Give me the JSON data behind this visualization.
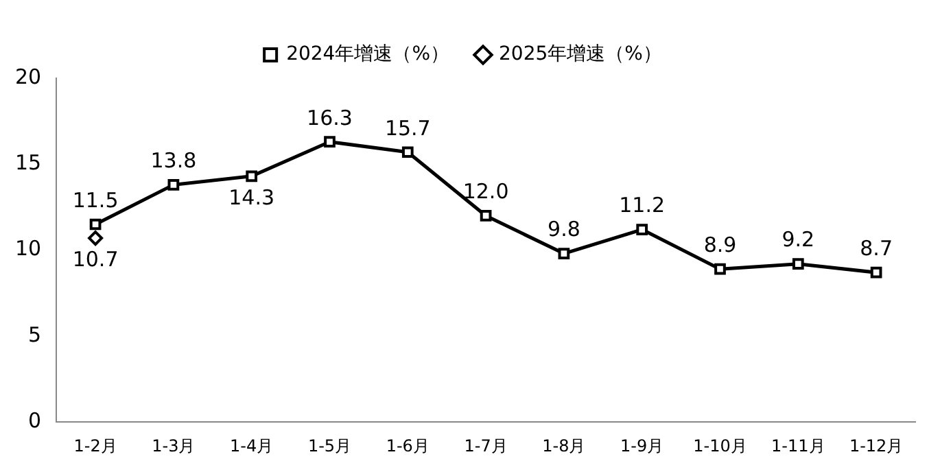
{
  "chart_data": {
    "type": "line",
    "categories": [
      "1-2月",
      "1-3月",
      "1-4月",
      "1-5月",
      "1-6月",
      "1-7月",
      "1-8月",
      "1-9月",
      "1-10月",
      "1-11月",
      "1-12月"
    ],
    "series": [
      {
        "name": "2024年增速（%）",
        "color": "#000000",
        "marker": "square",
        "values": [
          11.5,
          13.8,
          14.3,
          16.3,
          15.7,
          12.0,
          9.8,
          11.2,
          8.9,
          9.2,
          8.7
        ],
        "value_labels": [
          "11.5",
          "13.8",
          "14.3",
          "16.3",
          "15.7",
          "12.0",
          "9.8",
          "11.2",
          "8.9",
          "9.2",
          "8.7"
        ]
      },
      {
        "name": "2025年增速（%）",
        "color": "#000000",
        "marker": "diamond",
        "values": [
          10.7,
          null,
          null,
          null,
          null,
          null,
          null,
          null,
          null,
          null,
          null
        ],
        "value_labels": [
          "10.7",
          null,
          null,
          null,
          null,
          null,
          null,
          null,
          null,
          null,
          null
        ]
      }
    ],
    "ylim": [
      0,
      20
    ],
    "yticks": [
      0,
      5,
      10,
      15,
      20
    ],
    "grid": false,
    "legend": "top"
  }
}
